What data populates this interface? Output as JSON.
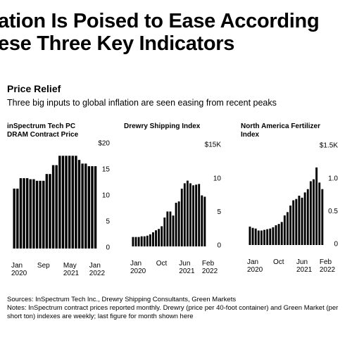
{
  "headline": [
    "ation Is Poised to Ease According",
    "ese Three Key Indicators"
  ],
  "title": "Price Relief",
  "subtitle": "Three big inputs to global inflation are seen easing from recent peaks",
  "sources": "Sources: InSpectrum Tech Inc., Drewry Shipping Consultants, Green Markets",
  "notes": "Notes: InSpectrum contract prices reported monthly. Drewry (price per 40-foot container) and Green Market (per short ton) indexes are weekly; last figure for month shown here",
  "chart_data": [
    {
      "type": "bar",
      "title": [
        "inSpectrum Tech PC",
        "DRAM Contract Price"
      ],
      "color": "#000000",
      "grid": false,
      "categories": [
        "Jan 2020",
        null,
        null,
        null,
        null,
        null,
        null,
        null,
        "Sep",
        null,
        null,
        null,
        null,
        null,
        null,
        null,
        "May 2021",
        null,
        null,
        null,
        null,
        null,
        null,
        null,
        "Jan 2022",
        null
      ],
      "values": [
        11.5,
        11.5,
        13.5,
        13.5,
        13.5,
        13.3,
        13.3,
        13,
        13,
        13,
        14.3,
        14.3,
        16,
        16,
        17.8,
        17.8,
        17.8,
        17.8,
        17.8,
        17.8,
        17,
        16.3,
        16.3,
        15.8,
        15.8,
        15.8
      ],
      "ylim": [
        0,
        20
      ],
      "yticks": [
        0,
        5,
        10,
        15,
        {
          "value": 20,
          "label": "$20"
        }
      ]
    },
    {
      "type": "bar",
      "title": [
        "Drewry Shipping Index"
      ],
      "color": "#000000",
      "grid": false,
      "categories": [
        "Jan 2020",
        null,
        null,
        null,
        null,
        null,
        null,
        null,
        null,
        "Oct",
        null,
        null,
        null,
        null,
        null,
        null,
        null,
        "Jun 2021",
        null,
        null,
        null,
        null,
        null,
        null,
        null,
        "Feb 2022"
      ],
      "values": [
        1.4,
        1.4,
        1.4,
        1.5,
        1.5,
        1.6,
        1.8,
        2.1,
        2.4,
        2.6,
        3.0,
        4.3,
        5.2,
        5.2,
        4.6,
        6.5,
        6.7,
        8.6,
        9.4,
        9.8,
        9.4,
        9.1,
        9.2,
        9.3,
        7.6,
        7.4
      ],
      "ylim": [
        0,
        15
      ],
      "yticks": [
        0,
        5,
        10,
        {
          "value": 15,
          "label": "$15K"
        }
      ]
    },
    {
      "type": "bar",
      "title": [
        "North America Fertilizer",
        "Index"
      ],
      "color": "#000000",
      "grid": false,
      "categories": [
        "Jan 2020",
        null,
        null,
        null,
        null,
        null,
        null,
        null,
        null,
        "Oct",
        null,
        null,
        null,
        null,
        null,
        null,
        null,
        "Jun 2021",
        null,
        null,
        null,
        null,
        null,
        null,
        null,
        "Feb 2022"
      ],
      "values": [
        0.28,
        0.26,
        0.25,
        0.22,
        0.22,
        0.23,
        0.24,
        0.25,
        0.27,
        0.3,
        0.32,
        0.35,
        0.45,
        0.5,
        0.6,
        0.68,
        0.7,
        0.75,
        0.72,
        0.8,
        0.85,
        0.97,
        1.0,
        1.18,
        0.95,
        0.85
      ],
      "ylim": [
        0,
        1.5
      ],
      "yticks": [
        0,
        0.5,
        {
          "value": 1,
          "label": "1.0"
        },
        {
          "value": 1.5,
          "label": "$1.5K"
        }
      ]
    }
  ]
}
